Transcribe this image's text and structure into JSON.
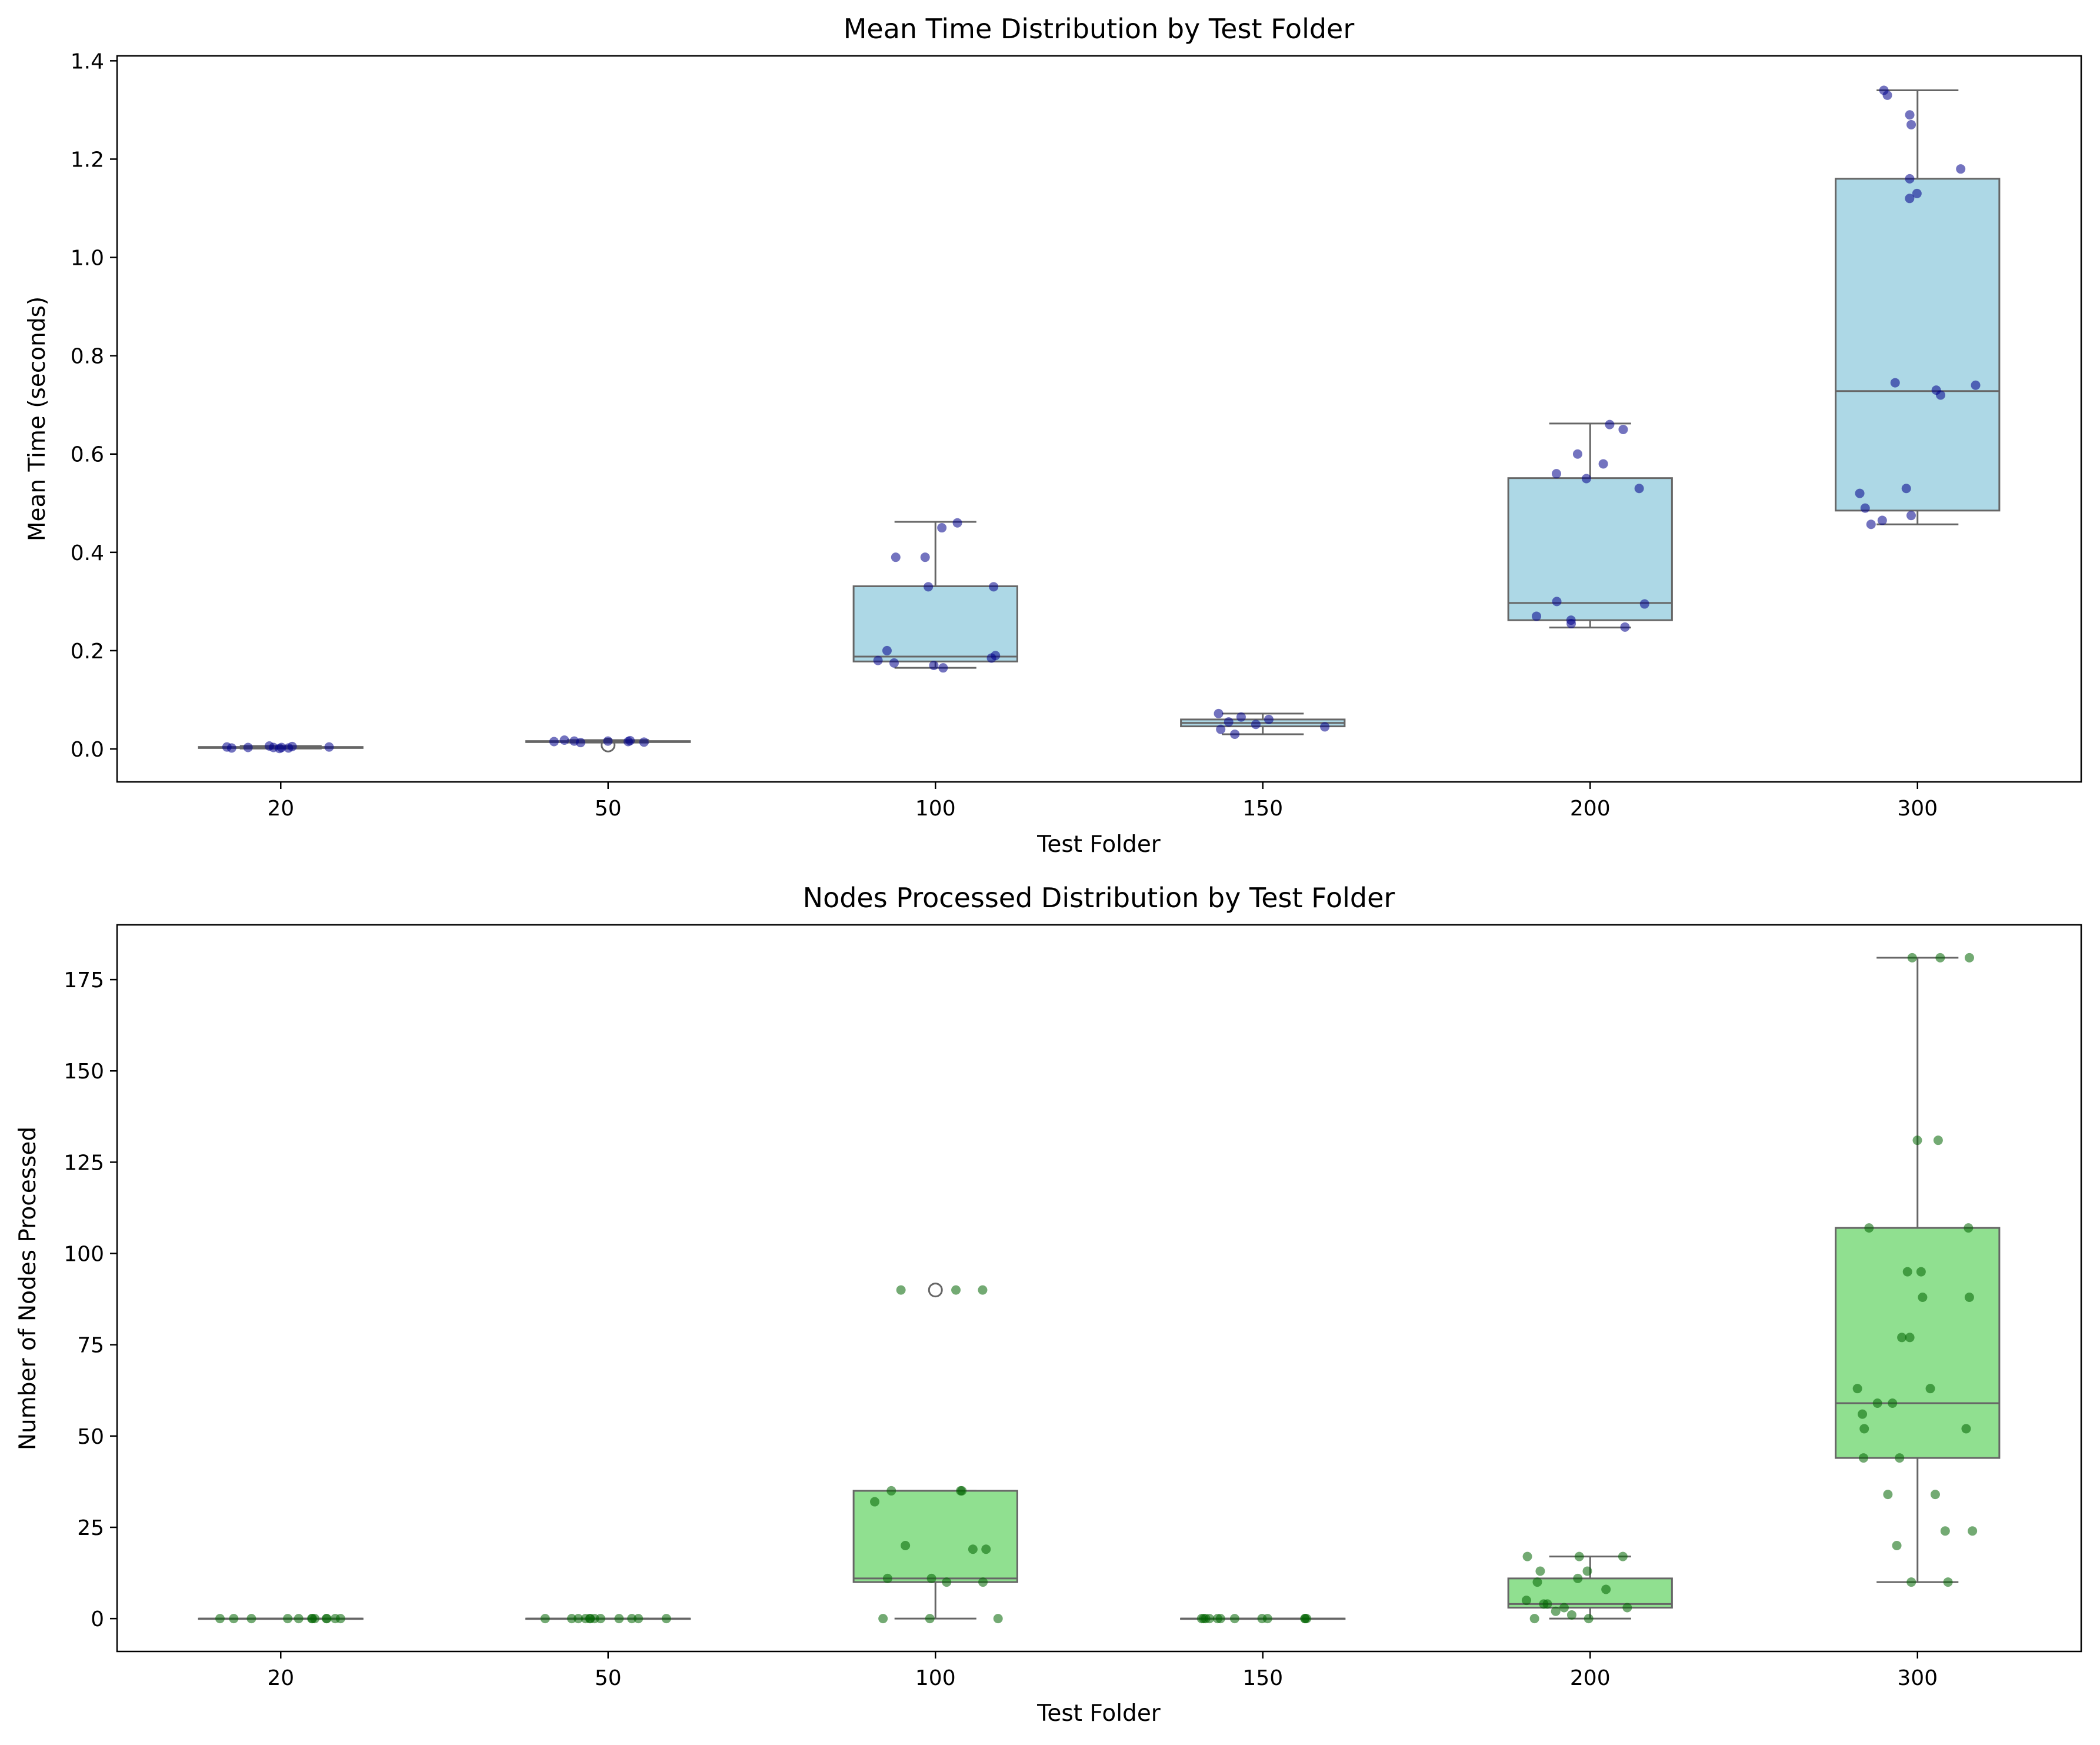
{
  "chart_data": [
    {
      "type": "box",
      "title": "Mean Time Distribution by Test Folder",
      "xlabel": "Test Folder",
      "ylabel": "Mean Time (seconds)",
      "categories": [
        "20",
        "50",
        "100",
        "150",
        "200",
        "300"
      ],
      "ylim": [
        -0.067,
        1.41
      ],
      "yticks": [
        0.0,
        0.2,
        0.4,
        0.6,
        0.8,
        1.0,
        1.2,
        1.4
      ],
      "ytick_labels": [
        "0.0",
        "0.2",
        "0.4",
        "0.6",
        "0.8",
        "1.0",
        "1.2",
        "1.4"
      ],
      "box_color": "#add8e6",
      "point_color": "#00008b",
      "boxes": [
        {
          "category": "20",
          "whisker_low": 0.001,
          "q1": 0.002,
          "median": 0.003,
          "q3": 0.004,
          "whisker_high": 0.006,
          "outliers": []
        },
        {
          "category": "50",
          "whisker_low": 0.013,
          "q1": 0.014,
          "median": 0.015,
          "q3": 0.016,
          "whisker_high": 0.018,
          "outliers": [
            0.008
          ]
        },
        {
          "category": "100",
          "whisker_low": 0.165,
          "q1": 0.178,
          "median": 0.188,
          "q3": 0.331,
          "whisker_high": 0.462,
          "outliers": []
        },
        {
          "category": "150",
          "whisker_low": 0.03,
          "q1": 0.046,
          "median": 0.053,
          "q3": 0.06,
          "whisker_high": 0.072,
          "outliers": []
        },
        {
          "category": "200",
          "whisker_low": 0.247,
          "q1": 0.262,
          "median": 0.297,
          "q3": 0.551,
          "whisker_high": 0.662,
          "outliers": []
        },
        {
          "category": "300",
          "whisker_low": 0.457,
          "q1": 0.485,
          "median": 0.728,
          "q3": 1.16,
          "whisker_high": 1.34,
          "outliers": []
        }
      ],
      "points": [
        {
          "category": "20",
          "values": [
            0.001,
            0.002,
            0.002,
            0.003,
            0.003,
            0.003,
            0.004,
            0.004,
            0.005,
            0.006
          ]
        },
        {
          "category": "50",
          "values": [
            0.013,
            0.014,
            0.015,
            0.015,
            0.016,
            0.016,
            0.017,
            0.018
          ]
        },
        {
          "category": "100",
          "values": [
            0.165,
            0.17,
            0.175,
            0.18,
            0.185,
            0.19,
            0.2,
            0.33,
            0.33,
            0.39,
            0.39,
            0.45,
            0.46
          ]
        },
        {
          "category": "150",
          "values": [
            0.03,
            0.04,
            0.045,
            0.05,
            0.055,
            0.06,
            0.065,
            0.072
          ]
        },
        {
          "category": "200",
          "values": [
            0.248,
            0.255,
            0.262,
            0.27,
            0.295,
            0.3,
            0.53,
            0.55,
            0.56,
            0.58,
            0.6,
            0.65,
            0.66
          ]
        },
        {
          "category": "300",
          "values": [
            0.457,
            0.465,
            0.475,
            0.49,
            0.52,
            0.53,
            0.72,
            0.73,
            0.74,
            0.745,
            1.12,
            1.13,
            1.16,
            1.18,
            1.27,
            1.29,
            1.33,
            1.34
          ]
        }
      ]
    },
    {
      "type": "box",
      "title": "Nodes Processed Distribution by Test Folder",
      "xlabel": "Test Folder",
      "ylabel": "Number of Nodes Processed",
      "categories": [
        "20",
        "50",
        "100",
        "150",
        "200",
        "300"
      ],
      "ylim": [
        -9,
        190
      ],
      "yticks": [
        0,
        25,
        50,
        75,
        100,
        125,
        150,
        175
      ],
      "ytick_labels": [
        "0",
        "25",
        "50",
        "75",
        "100",
        "125",
        "150",
        "175"
      ],
      "box_color": "#90e090",
      "point_color": "#006400",
      "boxes": [
        {
          "category": "20",
          "whisker_low": 0,
          "q1": 0,
          "median": 0,
          "q3": 0,
          "whisker_high": 0,
          "outliers": []
        },
        {
          "category": "50",
          "whisker_low": 0,
          "q1": 0,
          "median": 0,
          "q3": 0,
          "whisker_high": 0,
          "outliers": []
        },
        {
          "category": "100",
          "whisker_low": 0,
          "q1": 10,
          "median": 11,
          "q3": 35,
          "whisker_high": 35,
          "outliers": [
            90
          ]
        },
        {
          "category": "150",
          "whisker_low": 0,
          "q1": 0,
          "median": 0,
          "q3": 0,
          "whisker_high": 0,
          "outliers": []
        },
        {
          "category": "200",
          "whisker_low": 0,
          "q1": 3,
          "median": 4,
          "q3": 11,
          "whisker_high": 17,
          "outliers": []
        },
        {
          "category": "300",
          "whisker_low": 10,
          "q1": 44,
          "median": 59,
          "q3": 107,
          "whisker_high": 181,
          "outliers": []
        }
      ],
      "points": [
        {
          "category": "20",
          "values": [
            0,
            0,
            0,
            0,
            0,
            0,
            0,
            0,
            0,
            0,
            0,
            0
          ]
        },
        {
          "category": "50",
          "values": [
            0,
            0,
            0,
            0,
            0,
            0,
            0,
            0,
            0,
            0,
            0,
            0
          ]
        },
        {
          "category": "100",
          "values": [
            0,
            0,
            0,
            10,
            10,
            11,
            11,
            19,
            19,
            20,
            32,
            35,
            35,
            35,
            90,
            90,
            90
          ]
        },
        {
          "category": "150",
          "values": [
            0,
            0,
            0,
            0,
            0,
            0,
            0,
            0,
            0,
            0,
            0,
            0
          ]
        },
        {
          "category": "200",
          "values": [
            0,
            0,
            1,
            2,
            3,
            3,
            4,
            4,
            5,
            8,
            10,
            11,
            13,
            13,
            17,
            17,
            17
          ]
        },
        {
          "category": "300",
          "values": [
            10,
            10,
            20,
            24,
            24,
            34,
            34,
            44,
            44,
            52,
            52,
            56,
            59,
            59,
            63,
            63,
            77,
            77,
            88,
            88,
            95,
            95,
            107,
            107,
            131,
            131,
            181,
            181,
            181
          ]
        }
      ]
    }
  ]
}
